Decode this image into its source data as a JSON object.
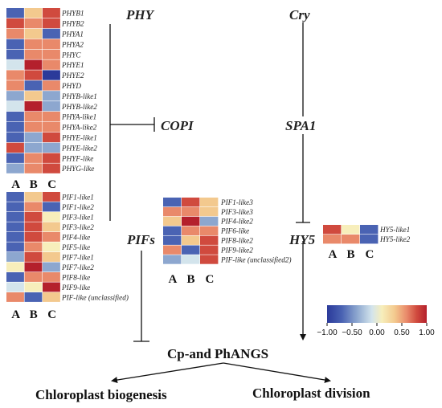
{
  "palette": [
    "#2b3a9a",
    "#4a63b3",
    "#8da7cf",
    "#d3e4ec",
    "#f7eebb",
    "#f3c98e",
    "#e9896a",
    "#d04a3e",
    "#b4202c"
  ],
  "columns": [
    "A",
    "B",
    "C"
  ],
  "phy_group": {
    "genes": [
      "PHYB1",
      "PHYB2",
      "PHYA1",
      "PHYA2",
      "PHYC",
      "PHYE1",
      "PHYE2",
      "PHYD",
      "PHYB-like1",
      "PHYB-like2",
      "PHYA-like1",
      "PHYA-like2",
      "PHYE-like1",
      "PHYE-like2",
      "PHYF-like",
      "PHYG-like"
    ],
    "values": [
      [
        -0.85,
        0.3,
        0.8
      ],
      [
        0.75,
        0.4,
        0.7
      ],
      [
        0.6,
        0.35,
        -0.75
      ],
      [
        -0.8,
        0.55,
        0.6
      ],
      [
        -0.8,
        0.4,
        0.6
      ],
      [
        -0.3,
        0.95,
        0.6
      ],
      [
        0.5,
        0.8,
        -0.9
      ],
      [
        0.6,
        -0.85,
        0.4
      ],
      [
        -0.6,
        0.3,
        -0.5
      ],
      [
        -0.2,
        0.95,
        -0.5
      ],
      [
        -0.8,
        0.5,
        0.6
      ],
      [
        -0.85,
        0.4,
        0.5
      ],
      [
        -0.75,
        -0.4,
        0.75
      ],
      [
        0.8,
        -0.5,
        -0.4
      ],
      [
        -0.7,
        0.6,
        0.75
      ],
      [
        -0.6,
        0.55,
        0.75
      ]
    ]
  },
  "pif_group": {
    "genes": [
      "PIF1-like1",
      "PIF1-like2",
      "PIF3-like1",
      "PIF3-like2",
      "PIF4-like",
      "PIF5-like",
      "PIF7-like1",
      "PIF7-like2",
      "PIF8-like",
      "PIF9-like",
      "PIF-like (unclassified)"
    ],
    "values": [
      [
        -0.7,
        0.2,
        0.85
      ],
      [
        -0.8,
        0.45,
        -0.8
      ],
      [
        -0.85,
        0.8,
        0.1
      ],
      [
        -0.85,
        0.85,
        0.2
      ],
      [
        -0.85,
        0.85,
        0.5
      ],
      [
        -0.8,
        0.5,
        -0.1
      ],
      [
        -0.6,
        0.85,
        0.3
      ],
      [
        0.1,
        0.9,
        -0.4
      ],
      [
        -0.8,
        0.4,
        0.55
      ],
      [
        -0.2,
        0.1,
        0.95
      ],
      [
        0.6,
        -0.8,
        0.2
      ]
    ]
  },
  "pif_mid_group": {
    "genes": [
      "PIF1-like3",
      "PIF3-like3",
      "PIF4-like2",
      "PIF6-like",
      "PIF8-like2",
      "PIF9-like2",
      "PIF-like (unclassified2)"
    ],
    "values": [
      [
        -0.7,
        0.85,
        0.15
      ],
      [
        0.55,
        0.4,
        0.3
      ],
      [
        0.2,
        0.95,
        -0.45
      ],
      [
        -0.85,
        0.5,
        0.5
      ],
      [
        -0.8,
        0.2,
        0.65
      ],
      [
        0.6,
        -0.85,
        0.65
      ],
      [
        -0.5,
        -0.35,
        0.85
      ]
    ]
  },
  "hy5_group": {
    "genes": [
      "HY5-like1",
      "HY5-like2"
    ],
    "values": [
      [
        0.8,
        0.1,
        -0.75
      ],
      [
        0.45,
        0.6,
        -0.8
      ]
    ]
  },
  "labels": {
    "phy": "PHY",
    "cry": "Cry",
    "copi": "COPI",
    "spa1": "SPA1",
    "pifs": "PIFs",
    "hy5": "HY5",
    "target": "Cp-and PhANGS",
    "out_left": "Chloroplast biogenesis",
    "out_right": "Chloroplast division"
  },
  "legend": {
    "ticks": [
      "−1.00",
      "−0.50",
      "0.00",
      "0.50",
      "1.00"
    ],
    "range": [
      -1,
      1
    ]
  }
}
